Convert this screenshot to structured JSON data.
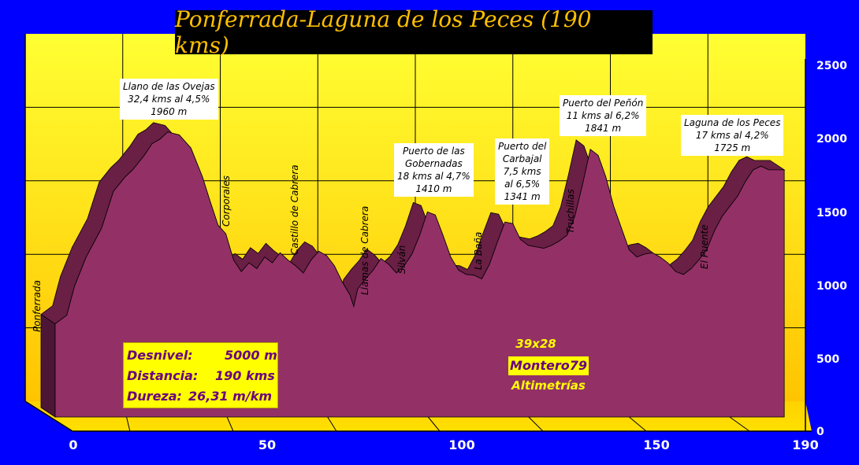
{
  "chart_data": {
    "type": "area",
    "title": "Ponferrada-Laguna de los Peces (190 kms)",
    "xlabel": "",
    "ylabel": "",
    "xlim": [
      0,
      190
    ],
    "ylim": [
      0,
      2500
    ],
    "x_ticks": [
      "0",
      "50",
      "100",
      "150",
      "190"
    ],
    "y_ticks": [
      "0",
      "500",
      "1000",
      "1500",
      "2000",
      "2500"
    ],
    "grid": true,
    "series": [
      {
        "x": [
          0,
          3,
          5,
          8,
          12,
          15,
          18,
          20,
          23,
          25,
          27,
          29,
          32,
          35,
          38,
          40,
          42,
          44,
          46,
          48,
          50,
          52,
          54,
          56,
          58,
          60,
          62,
          64,
          66,
          68,
          70,
          72,
          74,
          76,
          77,
          78,
          80,
          82,
          84,
          86,
          88,
          90,
          92,
          94,
          96,
          98,
          100,
          102,
          104,
          106,
          108,
          110,
          112,
          114,
          116,
          118,
          120,
          122,
          124,
          126,
          128,
          130,
          132,
          134,
          136,
          138,
          140,
          142,
          144,
          146,
          148,
          150,
          152,
          154,
          156,
          158,
          160,
          162,
          164,
          166,
          168,
          170,
          172,
          174,
          176,
          178,
          180,
          182,
          184,
          186,
          188
        ],
        "y": [
          640,
          700,
          900,
          1100,
          1300,
          1550,
          1650,
          1700,
          1800,
          1880,
          1910,
          1960,
          1940,
          1850,
          1650,
          1480,
          1320,
          1260,
          1080,
          1000,
          1060,
          1020,
          1100,
          1060,
          1130,
          1080,
          1040,
          990,
          1080,
          1140,
          1110,
          1040,
          930,
          840,
          760,
          880,
          950,
          1010,
          1090,
          1050,
          990,
          1040,
          1120,
          1250,
          1410,
          1390,
          1250,
          1100,
          1010,
          980,
          975,
          950,
          1050,
          1200,
          1341,
          1330,
          1220,
          1180,
          1170,
          1160,
          1180,
          1210,
          1250,
          1380,
          1600,
          1841,
          1800,
          1650,
          1450,
          1300,
          1150,
          1100,
          1120,
          1130,
          1100,
          1060,
          1000,
          980,
          1020,
          1080,
          1150,
          1280,
          1380,
          1450,
          1520,
          1620,
          1700,
          1725,
          1700,
          1700,
          1700
        ]
      }
    ],
    "annotations": [
      {
        "lines": [
          "Llano de las Ovejas",
          "32,4 kms al 4,5%",
          "1960 m"
        ]
      },
      {
        "lines": [
          "Puerto de las",
          "Gobernadas",
          "18 kms al 4,7%",
          "1410 m"
        ]
      },
      {
        "lines": [
          "Puerto del",
          "Carbajal",
          "7,5 kms",
          "al 6,5%",
          "1341 m"
        ]
      },
      {
        "lines": [
          "Puerto del Peñón",
          "11 kms al 6,2%",
          "1841 m"
        ]
      },
      {
        "lines": [
          "Laguna de los Peces",
          "17 kms al 4,2%",
          "1725 m"
        ]
      }
    ],
    "place_labels": [
      "Ponferrada",
      "Corporales",
      "Castillo de Cabrera",
      "Llamas de Cabrera",
      "Silván",
      "La Baña",
      "Truchillas",
      "El Puente"
    ]
  },
  "stats": {
    "desnivel_label": "Desnivel:",
    "desnivel_value": "5000 m",
    "distancia_label": "Distancia:",
    "distancia_value": "190 kms",
    "dureza_label": "Dureza:",
    "dureza_value": "26,31 m/km"
  },
  "credits": {
    "code": "39x28",
    "author": "Montero79",
    "site": "Altimetrías"
  },
  "colors": {
    "background": "#0000ff",
    "plot_top": "#ffff44",
    "plot_bottom": "#ffc800",
    "area_fill": "#933166",
    "area_top": "#6a1f45",
    "title_text": "#ffc000"
  }
}
